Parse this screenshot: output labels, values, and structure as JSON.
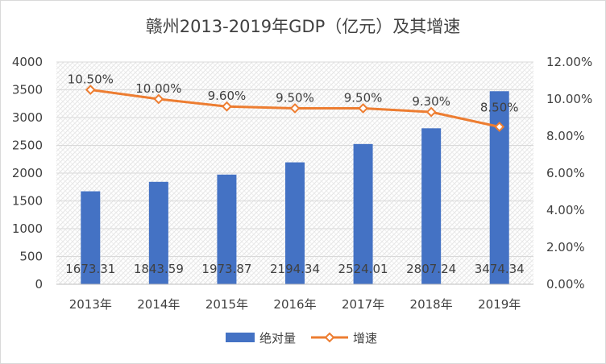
{
  "chart_data": {
    "type": "bar",
    "title": "赣州2013-2019年GDP（亿元）及其增速",
    "categories": [
      "2013年",
      "2014年",
      "2015年",
      "2016年",
      "2017年",
      "2018年",
      "2019年"
    ],
    "series": [
      {
        "name": "绝对量",
        "type": "bar",
        "axis": "left",
        "values": [
          1673.31,
          1843.59,
          1973.87,
          2194.34,
          2524.01,
          2807.24,
          3474.34
        ],
        "labels": [
          "1673.31",
          "1843.59",
          "1973.87",
          "2194.34",
          "2524.01",
          "2807.24",
          "3474.34"
        ],
        "color": "#4472c4"
      },
      {
        "name": "增速",
        "type": "line",
        "axis": "right",
        "values": [
          10.5,
          10.0,
          9.6,
          9.5,
          9.5,
          9.3,
          8.5
        ],
        "labels": [
          "10.50%",
          "10.00%",
          "9.60%",
          "9.50%",
          "9.50%",
          "9.30%",
          "8.50%"
        ],
        "color": "#ed7d31"
      }
    ],
    "y_left": {
      "min": 0,
      "max": 4000,
      "step": 500,
      "ticks": [
        "0",
        "500",
        "1000",
        "1500",
        "2000",
        "2500",
        "3000",
        "3500",
        "4000"
      ]
    },
    "y_right": {
      "min": 0,
      "max": 12,
      "step": 2,
      "ticks": [
        "0.00%",
        "2.00%",
        "4.00%",
        "6.00%",
        "8.00%",
        "10.00%",
        "12.00%"
      ]
    },
    "grid": true,
    "legend_position": "bottom"
  },
  "colors": {
    "bar": "#4472c4",
    "line": "#ed7d31",
    "grid": "#d9d9d9",
    "text": "#404040"
  }
}
